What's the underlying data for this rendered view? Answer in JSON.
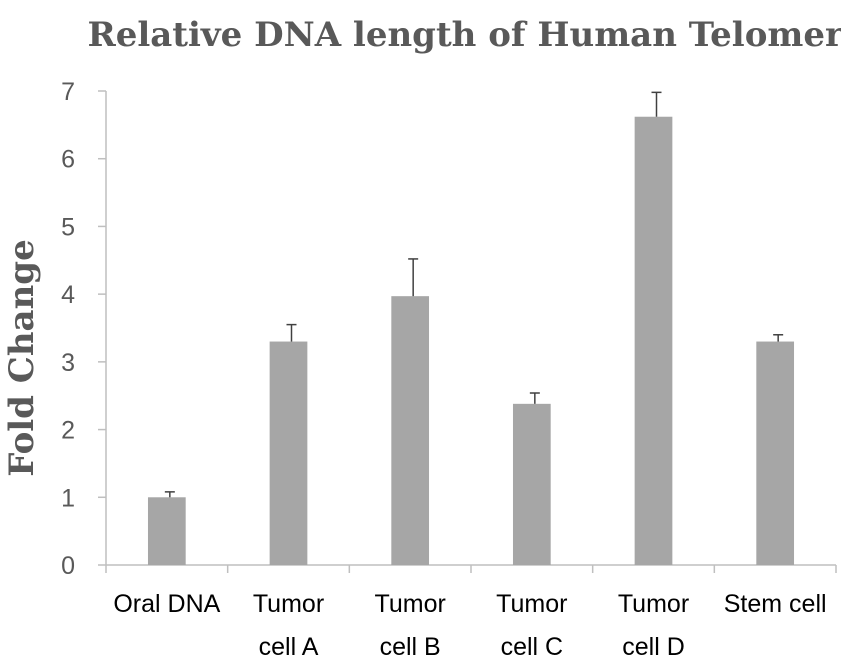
{
  "chart_data": {
    "type": "bar",
    "title": "Relative DNA length of Human Telomere",
    "xlabel": "",
    "ylabel": "Fold Change",
    "ylim": [
      0,
      7
    ],
    "yticks": [
      0,
      1,
      2,
      3,
      4,
      5,
      6,
      7
    ],
    "categories": [
      [
        "Oral DNA"
      ],
      [
        "Tumor",
        "cell A"
      ],
      [
        "Tumor",
        "cell B"
      ],
      [
        "Tumor",
        "cell C"
      ],
      [
        "Tumor",
        "cell D"
      ],
      [
        "Stem cell"
      ]
    ],
    "values": [
      1.0,
      3.3,
      3.97,
      2.38,
      6.62,
      3.3
    ],
    "error_plus": [
      0.08,
      0.25,
      0.55,
      0.16,
      0.36,
      0.1
    ],
    "grid": false,
    "legend": "none",
    "colors": {
      "bar": "#a6a6a6",
      "axis": "#bfbfbf",
      "error": "#404040"
    }
  }
}
